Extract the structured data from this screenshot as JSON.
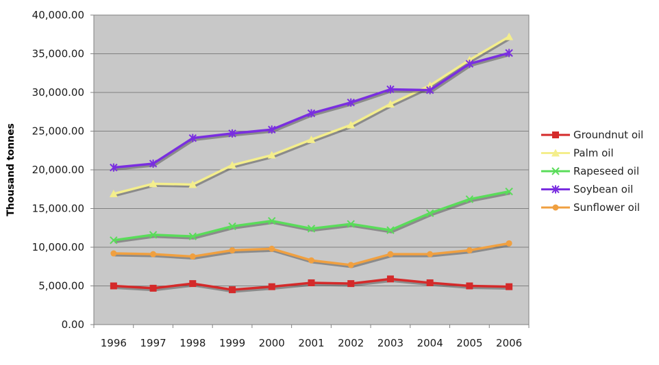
{
  "chart_data": {
    "type": "line",
    "ylabel": "Thousand tonnes",
    "ylim": [
      0,
      40000
    ],
    "y_ticks": [
      "0.00",
      "5,000.00",
      "10,000.00",
      "15,000.00",
      "20,000.00",
      "25,000.00",
      "30,000.00",
      "35,000.00",
      "40,000.00"
    ],
    "x": [
      "1996",
      "1997",
      "1998",
      "1999",
      "2000",
      "2001",
      "2002",
      "2003",
      "2004",
      "2005",
      "2006"
    ],
    "grid": "horizontal",
    "plot_background": "#c8c8c8",
    "legend_position": "right",
    "series": [
      {
        "name": "Groundnut oil",
        "color": "#d42a2a",
        "marker": "square",
        "values": [
          5000,
          4700,
          5300,
          4500,
          4900,
          5400,
          5300,
          5900,
          5400,
          5000,
          4900
        ]
      },
      {
        "name": "Palm oil",
        "color": "#f4ee8c",
        "marker": "triangle",
        "values": [
          16900,
          18200,
          18100,
          20600,
          21900,
          23900,
          25800,
          28500,
          30900,
          34200,
          37200
        ]
      },
      {
        "name": "Rapeseed oil",
        "color": "#5adc5a",
        "marker": "x",
        "values": [
          10900,
          11600,
          11400,
          12700,
          13400,
          12400,
          13000,
          12200,
          14400,
          16200,
          17200
        ]
      },
      {
        "name": "Soybean oil",
        "color": "#7a2ee0",
        "marker": "star",
        "values": [
          20300,
          20800,
          24100,
          24700,
          25200,
          27300,
          28700,
          30400,
          30300,
          33700,
          35100
        ]
      },
      {
        "name": "Sunflower oil",
        "color": "#f0a040",
        "marker": "circle",
        "values": [
          9200,
          9100,
          8800,
          9600,
          9800,
          8300,
          7700,
          9100,
          9100,
          9600,
          10500
        ]
      }
    ]
  }
}
